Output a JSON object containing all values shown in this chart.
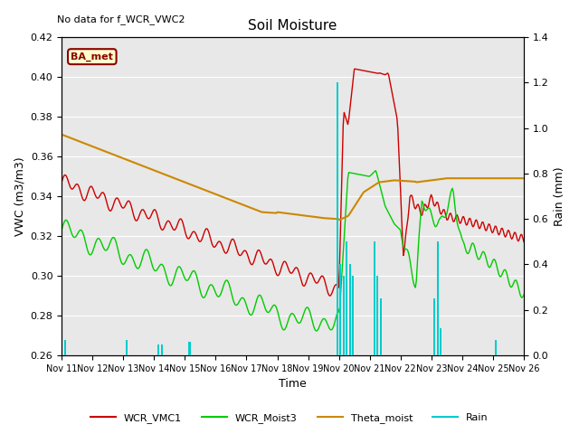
{
  "title": "Soil Moisture",
  "top_left_text": "No data for f_WCR_VWC2",
  "ylabel_left": "VWC (m3/m3)",
  "ylabel_right": "Rain (mm)",
  "xlabel": "Time",
  "ylim_left": [
    0.26,
    0.42
  ],
  "ylim_right": [
    0.0,
    1.4
  ],
  "yticks_left": [
    0.26,
    0.28,
    0.3,
    0.32,
    0.34,
    0.36,
    0.38,
    0.4,
    0.42
  ],
  "yticks_right": [
    0.0,
    0.2,
    0.4,
    0.6,
    0.8,
    1.0,
    1.2,
    1.4
  ],
  "bg_color": "#e8e8e8",
  "fig_color": "#ffffff",
  "annotation_box": {
    "text": "BA_met",
    "facecolor": "#ffffcc",
    "edgecolor": "#8b0000",
    "textcolor": "#8b0000"
  },
  "xtick_labels": [
    "Nov 11",
    "Nov 12",
    "Nov 13",
    "Nov 14",
    "Nov 15",
    "Nov 16",
    "Nov 17",
    "Nov 18",
    "Nov 19",
    "Nov 20",
    "Nov 21",
    "Nov 22",
    "Nov 23",
    "Nov 24",
    "Nov 25",
    "Nov 26"
  ],
  "red_color": "#cc0000",
  "green_color": "#00cc00",
  "orange_color": "#cc8800",
  "cyan_color": "#00cccc",
  "legend_labels": [
    "WCR_VMC1",
    "WCR_Moist3",
    "Theta_moist",
    "Rain"
  ]
}
